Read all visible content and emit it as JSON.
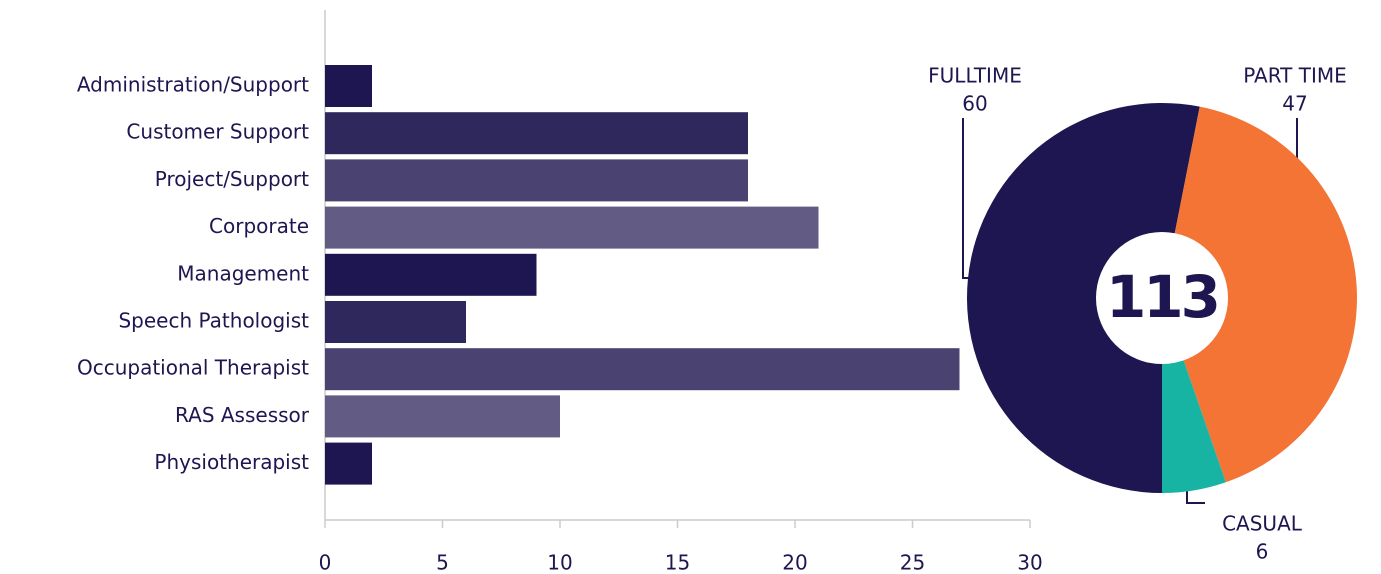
{
  "chart_data": [
    {
      "type": "hbar",
      "categories": [
        "Administration/Support",
        "Customer Support",
        "Project/Support",
        "Corporate",
        "Management",
        "Speech Pathologist",
        "Occupational Therapist",
        "RAS Assessor",
        "Physiotherapist"
      ],
      "values": [
        2,
        18,
        18,
        21,
        9,
        6,
        27,
        10,
        2
      ],
      "colors": [
        "#1e1650",
        "#2f285c",
        "#4a4372",
        "#625b83",
        "#1e1650",
        "#2f285c",
        "#4a4372",
        "#625b83",
        "#1e1650"
      ],
      "xlim": [
        0,
        30
      ],
      "xticks": [
        0,
        5,
        10,
        15,
        20,
        25,
        30
      ]
    },
    {
      "type": "donut",
      "total": 113,
      "categories": [
        "FULLTIME",
        "PART TIME",
        "CASUAL"
      ],
      "values": [
        60,
        47,
        6
      ],
      "colors": [
        "#1e1650",
        "#f37435",
        "#17b3a3"
      ]
    }
  ]
}
